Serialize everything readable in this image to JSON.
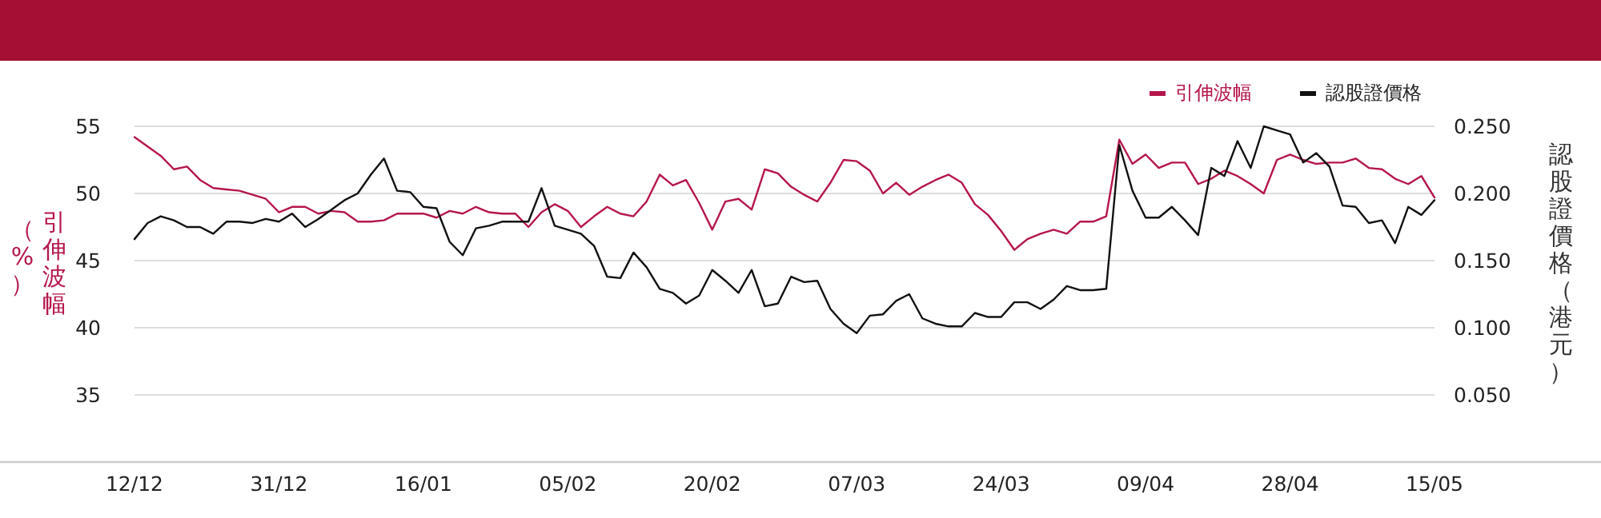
{
  "chart_data": {
    "type": "line",
    "categories": [
      "12/12",
      null,
      null,
      null,
      null,
      null,
      null,
      null,
      null,
      null,
      null,
      "31/12",
      null,
      null,
      null,
      null,
      null,
      null,
      null,
      null,
      null,
      null,
      "16/01",
      null,
      null,
      null,
      null,
      null,
      null,
      null,
      null,
      null,
      null,
      "05/02",
      null,
      null,
      null,
      null,
      null,
      null,
      null,
      null,
      null,
      null,
      "20/02",
      null,
      null,
      null,
      null,
      null,
      null,
      null,
      null,
      null,
      null,
      "07/03",
      null,
      null,
      null,
      null,
      null,
      null,
      null,
      null,
      null,
      null,
      "24/03",
      null,
      null,
      null,
      null,
      null,
      null,
      null,
      null,
      null,
      null,
      "09/04",
      null,
      null,
      null,
      null,
      null,
      null,
      null,
      null,
      null,
      null,
      "28/04",
      null,
      null,
      null,
      null,
      null,
      null,
      null,
      null,
      null,
      null,
      "15/05"
    ],
    "series": [
      {
        "name": "引伸波幅",
        "color": "#b5164b",
        "values": [
          54.2,
          53.5,
          52.8,
          51.8,
          52.0,
          51.0,
          50.4,
          50.3,
          50.2,
          49.9,
          49.6,
          48.6,
          49.0,
          49.0,
          48.5,
          48.7,
          48.6,
          47.9,
          47.9,
          48.0,
          48.5,
          48.5,
          48.5,
          48.2,
          48.7,
          48.5,
          49.0,
          48.6,
          48.5,
          48.5,
          47.5,
          48.6,
          49.2,
          48.7,
          47.5,
          48.3,
          49.0,
          48.5,
          48.3,
          49.4,
          51.4,
          50.6,
          51.0,
          49.3,
          47.3,
          49.4,
          49.6,
          48.8,
          51.8,
          51.5,
          50.5,
          49.9,
          49.4,
          50.8,
          52.5,
          52.4,
          51.7,
          50.0,
          50.8,
          49.9,
          50.5,
          51.0,
          51.4,
          50.8,
          49.2,
          48.4,
          47.2,
          45.8,
          46.6,
          47.0,
          47.3,
          47.0,
          47.9,
          47.9,
          48.3,
          54.0,
          52.2,
          52.9,
          51.9,
          52.3,
          52.3,
          50.7,
          51.1,
          51.7,
          51.3,
          50.7,
          50.0,
          52.5,
          52.9,
          52.5,
          52.2,
          52.3,
          52.3,
          52.6,
          51.9,
          51.8,
          51.1,
          50.7,
          51.3,
          49.7
        ]
      },
      {
        "name": "認股證價格",
        "color": "#111111",
        "axis": "y2",
        "values": [
          0.166,
          0.178,
          0.183,
          0.18,
          0.175,
          0.175,
          0.17,
          0.179,
          0.179,
          0.178,
          0.181,
          0.179,
          0.185,
          0.175,
          0.181,
          0.188,
          0.195,
          0.2,
          0.214,
          0.226,
          0.202,
          0.201,
          0.19,
          0.189,
          0.164,
          0.154,
          0.174,
          0.176,
          0.179,
          0.179,
          0.179,
          0.204,
          0.176,
          0.173,
          0.17,
          0.161,
          0.138,
          0.137,
          0.156,
          0.145,
          0.129,
          0.126,
          0.118,
          0.124,
          0.143,
          0.135,
          0.126,
          0.143,
          0.116,
          0.118,
          0.138,
          0.134,
          0.135,
          0.114,
          0.103,
          0.096,
          0.109,
          0.11,
          0.12,
          0.125,
          0.107,
          0.103,
          0.101,
          0.101,
          0.111,
          0.108,
          0.108,
          0.119,
          0.119,
          0.114,
          0.121,
          0.131,
          0.128,
          0.128,
          0.129,
          0.236,
          0.202,
          0.182,
          0.182,
          0.19,
          0.18,
          0.169,
          0.219,
          0.213,
          0.239,
          0.219,
          0.25,
          0.247,
          0.244,
          0.223,
          0.23,
          0.22,
          0.191,
          0.19,
          0.178,
          0.18,
          0.163,
          0.19,
          0.184,
          0.195
        ]
      }
    ],
    "ylabel": "引伸波幅（%）",
    "y2label": "認股證價格（港元）",
    "ylim": [
      30,
      55
    ],
    "yticks": [
      35,
      40,
      45,
      50,
      55
    ],
    "y2lim": [
      0,
      0.25
    ],
    "y2ticks": [
      {
        "value": 0.05,
        "label": "0.050"
      },
      {
        "value": 0.1,
        "label": "0.100"
      },
      {
        "value": 0.15,
        "label": "0.150"
      },
      {
        "value": 0.2,
        "label": "0.200"
      },
      {
        "value": 0.25,
        "label": "0.250"
      }
    ],
    "grid": "y",
    "legend": "top right"
  }
}
